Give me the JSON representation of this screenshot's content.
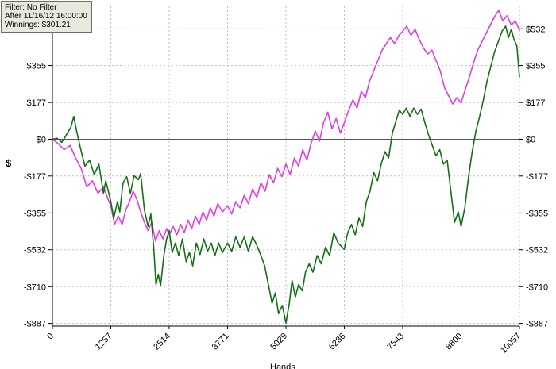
{
  "tooltip": {
    "filter": "Filter: No Filter",
    "after": "After 11/16/12 16:00:00",
    "winnings": "Winnings: $301.21"
  },
  "chart_data": {
    "type": "line",
    "title": "",
    "xlabel": "Hands",
    "ylabel": "$",
    "xlim": [
      0,
      10057
    ],
    "ylim": [
      -900,
      640
    ],
    "grid": "dashed",
    "legend": "none",
    "xticks": [
      0,
      1257,
      2514,
      3771,
      5029,
      6286,
      7543,
      8800,
      10057
    ],
    "ytick_values": [
      532,
      355,
      177,
      0,
      -177,
      -355,
      -532,
      -710,
      -887
    ],
    "ytick_labels": [
      "$532",
      "$355",
      "$177",
      "$0",
      "-$177",
      "-$355",
      "-$532",
      "-$710",
      "-$887"
    ],
    "colors": {
      "grid": "#bfbfbf",
      "zero_line": "#555555",
      "axis": "#000000"
    },
    "series": [
      {
        "name": "magenta-line",
        "color": "#e23de2",
        "points": [
          [
            0,
            0
          ],
          [
            120,
            -20
          ],
          [
            250,
            -50
          ],
          [
            380,
            -30
          ],
          [
            500,
            -90
          ],
          [
            620,
            -140
          ],
          [
            740,
            -230
          ],
          [
            860,
            -200
          ],
          [
            980,
            -260
          ],
          [
            1100,
            -230
          ],
          [
            1200,
            -290
          ],
          [
            1257,
            -320
          ],
          [
            1340,
            -410
          ],
          [
            1420,
            -370
          ],
          [
            1500,
            -410
          ],
          [
            1580,
            -340
          ],
          [
            1660,
            -300
          ],
          [
            1740,
            -250
          ],
          [
            1820,
            -290
          ],
          [
            1900,
            -350
          ],
          [
            1980,
            -400
          ],
          [
            2060,
            -440
          ],
          [
            2140,
            -400
          ],
          [
            2220,
            -490
          ],
          [
            2300,
            -440
          ],
          [
            2380,
            -480
          ],
          [
            2460,
            -430
          ],
          [
            2514,
            -460
          ],
          [
            2600,
            -420
          ],
          [
            2680,
            -460
          ],
          [
            2760,
            -410
          ],
          [
            2840,
            -450
          ],
          [
            2920,
            -390
          ],
          [
            3000,
            -430
          ],
          [
            3080,
            -370
          ],
          [
            3160,
            -410
          ],
          [
            3240,
            -350
          ],
          [
            3320,
            -390
          ],
          [
            3400,
            -330
          ],
          [
            3480,
            -370
          ],
          [
            3560,
            -310
          ],
          [
            3660,
            -350
          ],
          [
            3771,
            -320
          ],
          [
            3860,
            -360
          ],
          [
            3950,
            -300
          ],
          [
            4040,
            -330
          ],
          [
            4130,
            -270
          ],
          [
            4220,
            -310
          ],
          [
            4310,
            -240
          ],
          [
            4400,
            -280
          ],
          [
            4490,
            -210
          ],
          [
            4580,
            -250
          ],
          [
            4670,
            -170
          ],
          [
            4760,
            -210
          ],
          [
            4850,
            -140
          ],
          [
            4940,
            -180
          ],
          [
            5029,
            -120
          ],
          [
            5120,
            -170
          ],
          [
            5210,
            -90
          ],
          [
            5300,
            -130
          ],
          [
            5390,
            -50
          ],
          [
            5480,
            -100
          ],
          [
            5570,
            -20
          ],
          [
            5660,
            40
          ],
          [
            5750,
            -10
          ],
          [
            5840,
            80
          ],
          [
            5930,
            130
          ],
          [
            6020,
            50
          ],
          [
            6110,
            100
          ],
          [
            6200,
            30
          ],
          [
            6286,
            80
          ],
          [
            6380,
            140
          ],
          [
            6470,
            190
          ],
          [
            6560,
            150
          ],
          [
            6650,
            230
          ],
          [
            6740,
            200
          ],
          [
            6830,
            280
          ],
          [
            6920,
            330
          ],
          [
            7010,
            380
          ],
          [
            7100,
            430
          ],
          [
            7190,
            460
          ],
          [
            7280,
            490
          ],
          [
            7370,
            460
          ],
          [
            7460,
            500
          ],
          [
            7543,
            520
          ],
          [
            7630,
            545
          ],
          [
            7720,
            500
          ],
          [
            7810,
            530
          ],
          [
            7900,
            480
          ],
          [
            7990,
            440
          ],
          [
            8080,
            410
          ],
          [
            8170,
            430
          ],
          [
            8260,
            380
          ],
          [
            8350,
            330
          ],
          [
            8440,
            250
          ],
          [
            8530,
            210
          ],
          [
            8620,
            170
          ],
          [
            8710,
            200
          ],
          [
            8800,
            175
          ],
          [
            8890,
            240
          ],
          [
            8980,
            300
          ],
          [
            9070,
            370
          ],
          [
            9160,
            430
          ],
          [
            9250,
            470
          ],
          [
            9340,
            510
          ],
          [
            9430,
            550
          ],
          [
            9520,
            590
          ],
          [
            9610,
            620
          ],
          [
            9700,
            570
          ],
          [
            9790,
            595
          ],
          [
            9880,
            550
          ],
          [
            9970,
            570
          ],
          [
            10057,
            525
          ]
        ]
      },
      {
        "name": "green-line",
        "color": "#157015",
        "points": [
          [
            0,
            0
          ],
          [
            100,
            5
          ],
          [
            200,
            -15
          ],
          [
            300,
            20
          ],
          [
            400,
            60
          ],
          [
            460,
            110
          ],
          [
            520,
            40
          ],
          [
            600,
            -40
          ],
          [
            700,
            -130
          ],
          [
            800,
            -100
          ],
          [
            900,
            -170
          ],
          [
            1000,
            -120
          ],
          [
            1100,
            -260
          ],
          [
            1150,
            -200
          ],
          [
            1257,
            -300
          ],
          [
            1320,
            -380
          ],
          [
            1400,
            -300
          ],
          [
            1450,
            -350
          ],
          [
            1520,
            -210
          ],
          [
            1600,
            -180
          ],
          [
            1680,
            -260
          ],
          [
            1760,
            -175
          ],
          [
            1850,
            -195
          ],
          [
            1900,
            -165
          ],
          [
            1980,
            -340
          ],
          [
            2060,
            -420
          ],
          [
            2120,
            -360
          ],
          [
            2180,
            -520
          ],
          [
            2230,
            -700
          ],
          [
            2280,
            -650
          ],
          [
            2330,
            -705
          ],
          [
            2400,
            -560
          ],
          [
            2460,
            -480
          ],
          [
            2514,
            -440
          ],
          [
            2580,
            -545
          ],
          [
            2650,
            -500
          ],
          [
            2720,
            -560
          ],
          [
            2800,
            -480
          ],
          [
            2880,
            -590
          ],
          [
            2950,
            -545
          ],
          [
            3020,
            -610
          ],
          [
            3100,
            -500
          ],
          [
            3180,
            -555
          ],
          [
            3260,
            -480
          ],
          [
            3340,
            -540
          ],
          [
            3420,
            -500
          ],
          [
            3500,
            -560
          ],
          [
            3580,
            -500
          ],
          [
            3660,
            -545
          ],
          [
            3771,
            -500
          ],
          [
            3860,
            -540
          ],
          [
            3950,
            -470
          ],
          [
            4040,
            -520
          ],
          [
            4130,
            -470
          ],
          [
            4220,
            -540
          ],
          [
            4310,
            -470
          ],
          [
            4400,
            -510
          ],
          [
            4490,
            -560
          ],
          [
            4570,
            -610
          ],
          [
            4650,
            -700
          ],
          [
            4730,
            -790
          ],
          [
            4800,
            -740
          ],
          [
            4870,
            -840
          ],
          [
            4950,
            -800
          ],
          [
            5029,
            -885
          ],
          [
            5100,
            -790
          ],
          [
            5160,
            -680
          ],
          [
            5230,
            -760
          ],
          [
            5300,
            -700
          ],
          [
            5380,
            -730
          ],
          [
            5450,
            -640
          ],
          [
            5530,
            -600
          ],
          [
            5610,
            -640
          ],
          [
            5700,
            -560
          ],
          [
            5790,
            -600
          ],
          [
            5880,
            -520
          ],
          [
            5970,
            -560
          ],
          [
            6060,
            -450
          ],
          [
            6150,
            -500
          ],
          [
            6286,
            -530
          ],
          [
            6360,
            -450
          ],
          [
            6440,
            -410
          ],
          [
            6520,
            -460
          ],
          [
            6600,
            -380
          ],
          [
            6680,
            -420
          ],
          [
            6760,
            -300
          ],
          [
            6840,
            -250
          ],
          [
            6920,
            -160
          ],
          [
            7000,
            -200
          ],
          [
            7080,
            -120
          ],
          [
            7160,
            -60
          ],
          [
            7240,
            -90
          ],
          [
            7320,
            30
          ],
          [
            7400,
            90
          ],
          [
            7470,
            140
          ],
          [
            7543,
            120
          ],
          [
            7620,
            150
          ],
          [
            7700,
            110
          ],
          [
            7780,
            150
          ],
          [
            7860,
            120
          ],
          [
            7940,
            145
          ],
          [
            8020,
            80
          ],
          [
            8100,
            20
          ],
          [
            8180,
            -30
          ],
          [
            8260,
            -80
          ],
          [
            8340,
            -50
          ],
          [
            8420,
            -120
          ],
          [
            8500,
            -100
          ],
          [
            8580,
            -250
          ],
          [
            8660,
            -400
          ],
          [
            8740,
            -350
          ],
          [
            8800,
            -420
          ],
          [
            8880,
            -330
          ],
          [
            8960,
            -180
          ],
          [
            9040,
            -60
          ],
          [
            9120,
            40
          ],
          [
            9200,
            110
          ],
          [
            9280,
            190
          ],
          [
            9360,
            280
          ],
          [
            9440,
            350
          ],
          [
            9520,
            420
          ],
          [
            9600,
            470
          ],
          [
            9680,
            520
          ],
          [
            9760,
            545
          ],
          [
            9820,
            490
          ],
          [
            9880,
            530
          ],
          [
            9940,
            480
          ],
          [
            10000,
            450
          ],
          [
            10057,
            301
          ]
        ]
      }
    ]
  }
}
